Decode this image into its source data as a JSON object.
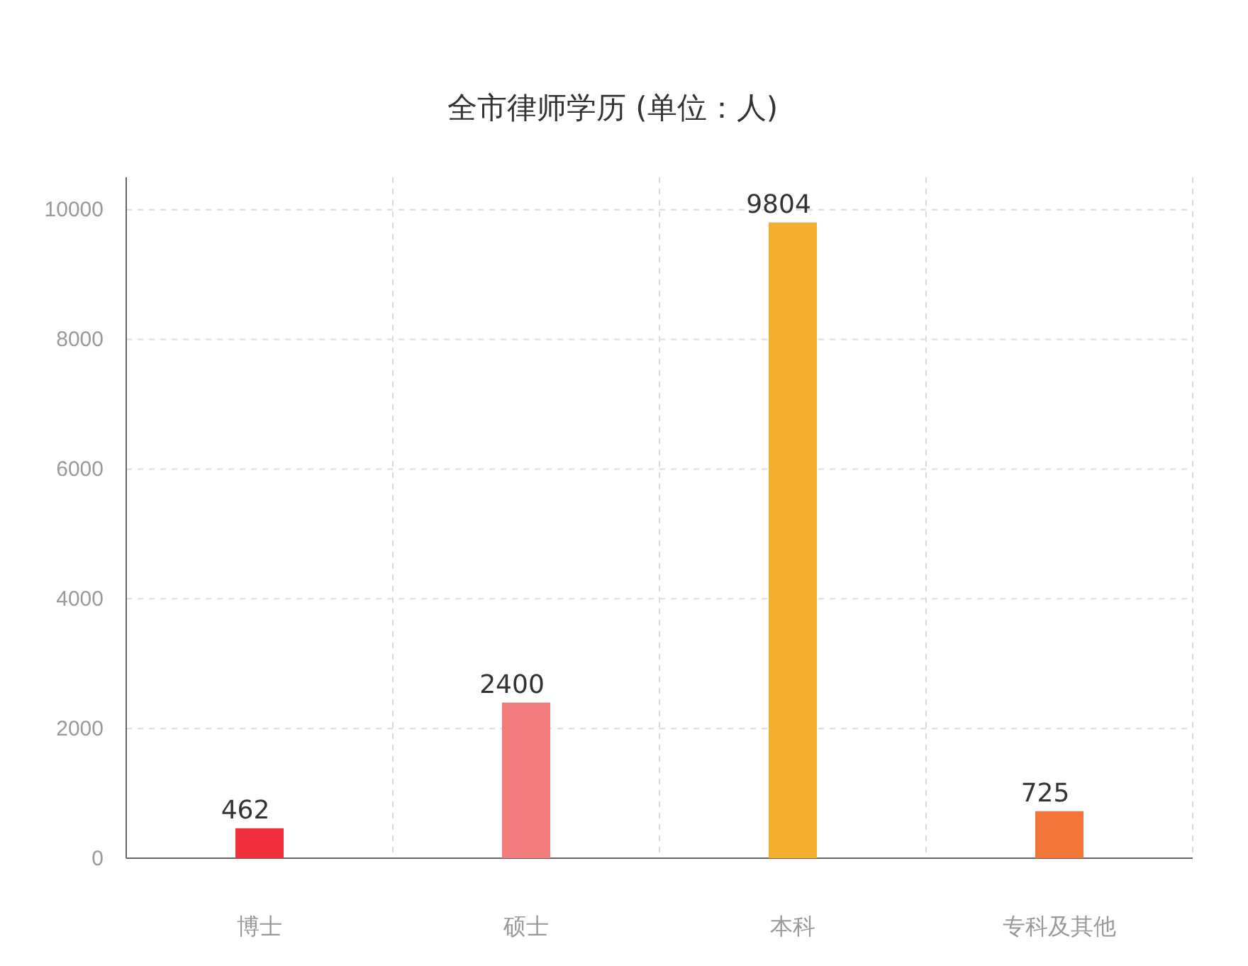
{
  "chart_data": {
    "type": "bar",
    "title": "全市律师学历 (单位：人)",
    "categories": [
      "博士",
      "硕士",
      "本科",
      "专科及其他"
    ],
    "values": [
      462,
      2400,
      9804,
      725
    ],
    "colors": [
      "#f0303c",
      "#f27b7b",
      "#f4ae2e",
      "#f07536"
    ],
    "ylim": [
      0,
      10500
    ],
    "yticks": [
      0,
      2000,
      4000,
      6000,
      8000,
      10000
    ],
    "grid": true,
    "data_labels": true
  }
}
